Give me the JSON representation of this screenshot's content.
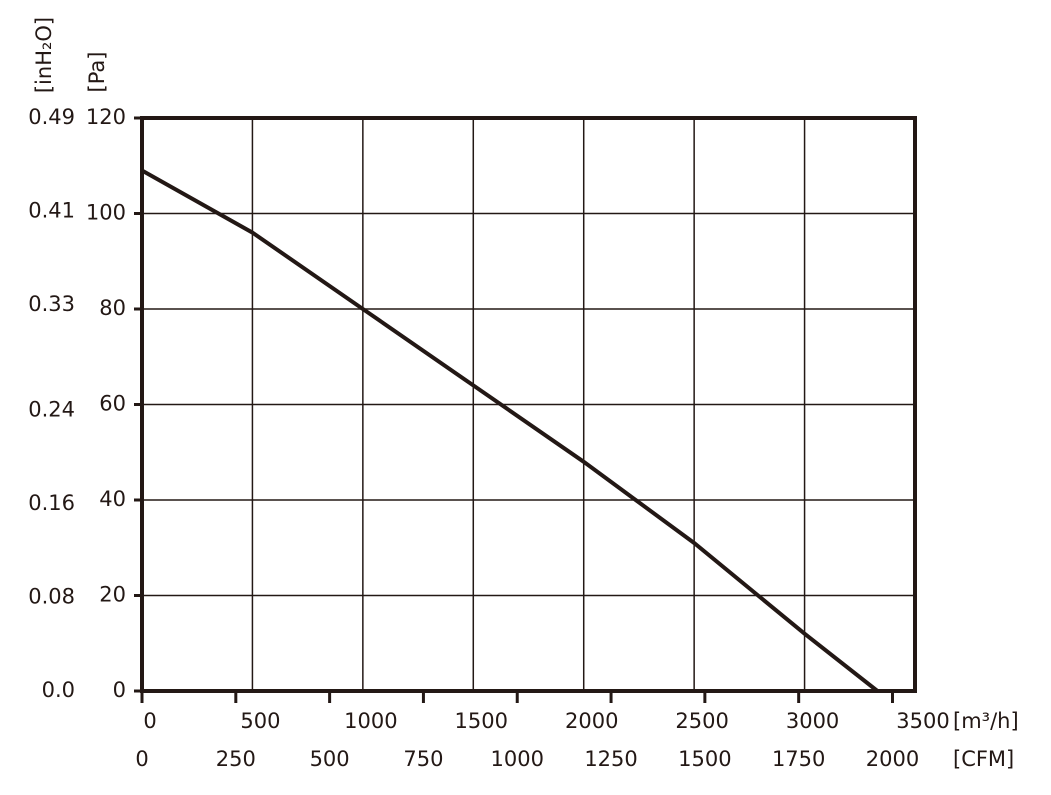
{
  "chart_data": {
    "type": "line",
    "x_label": "[m³/h]",
    "x2_label": "[CFM]",
    "y_label": "[Pa]",
    "y2_label": "[inH₂O]",
    "x": [
      0,
      500,
      1000,
      1500,
      2000,
      2500,
      3000,
      3330
    ],
    "series": [
      {
        "color": "#231815",
        "values": [
          109,
          96,
          80,
          64,
          48,
          31,
          12,
          0
        ]
      }
    ],
    "xlim": [
      0,
      3500
    ],
    "xticks": [
      0,
      500,
      1000,
      1500,
      2000,
      2500,
      3000,
      3500
    ],
    "x2lim": [
      0,
      2060
    ],
    "x2ticks": [
      0,
      250,
      500,
      750,
      1000,
      1250,
      1500,
      1750,
      2000
    ],
    "ylim": [
      0,
      120
    ],
    "yticks": [
      0,
      20,
      40,
      60,
      80,
      100,
      120
    ],
    "y2lim": [
      0,
      0.49
    ],
    "y2ticks": [
      {
        "value": 0,
        "label": "0.0"
      },
      0.08,
      0.16,
      0.24,
      0.33,
      0.41,
      0.49
    ],
    "grid": true
  }
}
